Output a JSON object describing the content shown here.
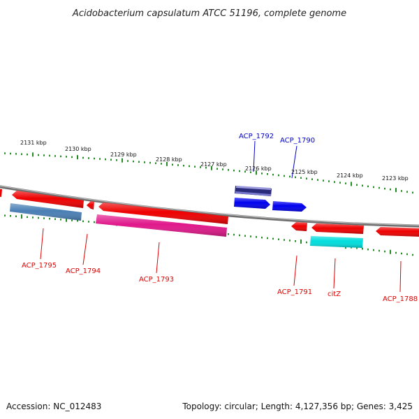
{
  "title": "Acidobacterium capsulatum ATCC 51196, complete genome",
  "footer": {
    "accession": "Accession: NC_012483",
    "summary": "Topology: circular; Length: 4,127,356 bp; Genes: 3,425"
  },
  "colors": {
    "backbone": "#808080",
    "tick": "#228B22",
    "label_red": "#dd0000",
    "label_blue": "#0000cc"
  },
  "ticks": [
    {
      "label": "2131 kbp"
    },
    {
      "label": "2130 kbp"
    },
    {
      "label": "2129 kbp"
    },
    {
      "label": "2128 kbp"
    },
    {
      "label": "2127 kbp"
    },
    {
      "label": "2126 kbp"
    },
    {
      "label": "2125 kbp"
    },
    {
      "label": "2124 kbp"
    },
    {
      "label": "2123 kbp"
    }
  ],
  "genes": [
    {
      "name": "",
      "strand": "+",
      "color": "#ee0000"
    },
    {
      "name": "",
      "strand": "-",
      "color": "#ee0000"
    },
    {
      "name": "ACP_1795",
      "strand": "-",
      "color": "#4a7fb5"
    },
    {
      "name": "ACP_1794",
      "strand": "-",
      "color": "#ee0000"
    },
    {
      "name": "",
      "strand": "-",
      "color": "#ee0000"
    },
    {
      "name": "ACP_1793",
      "strand": "-",
      "color": "#e0188a"
    },
    {
      "name": "ACP_1792",
      "strand": "+",
      "color": "#2a2a7a"
    },
    {
      "name": "",
      "strand": "+",
      "color": "#0000ee"
    },
    {
      "name": "ACP_1790",
      "strand": "+",
      "color": "#0000ee"
    },
    {
      "name": "ACP_1791",
      "strand": "-",
      "color": "#ee0000"
    },
    {
      "name": "",
      "strand": "-",
      "color": "#ee0000"
    },
    {
      "name": "citZ",
      "strand": "-",
      "color": "#00dddd"
    },
    {
      "name": "ACP_1788",
      "strand": "-",
      "color": "#ee0000"
    }
  ]
}
